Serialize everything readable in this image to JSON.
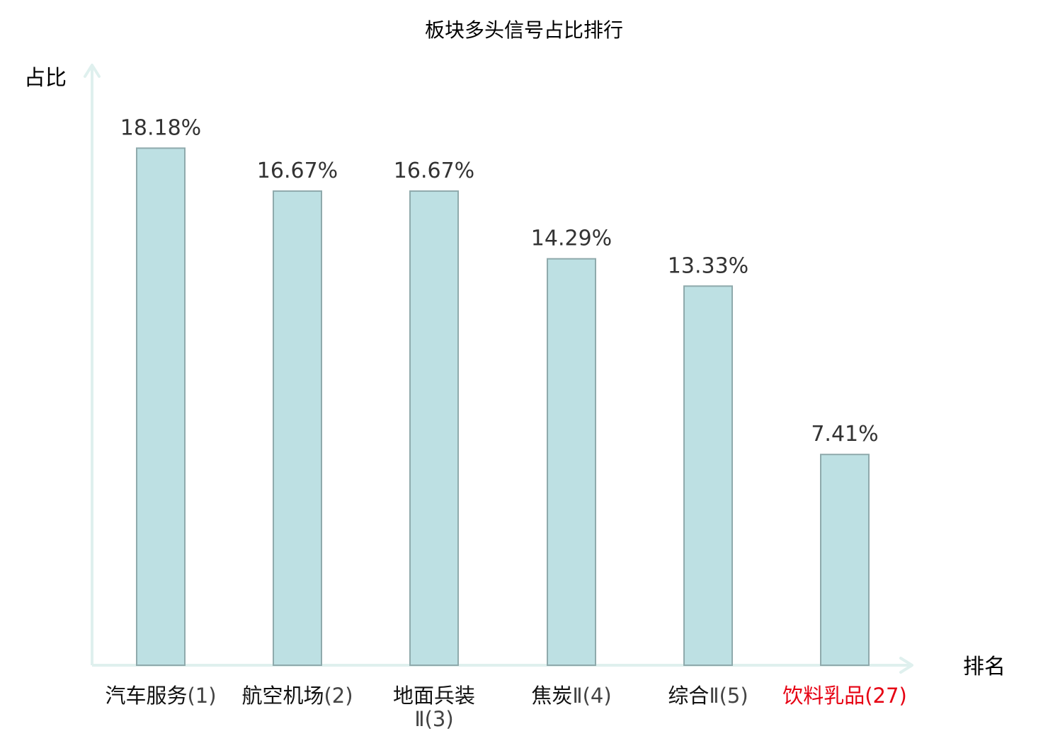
{
  "chart_data": {
    "type": "bar",
    "title": "板块多头信号占比排行",
    "xlabel": "排名",
    "ylabel": "占比",
    "categories": [
      {
        "name": "汽车服务",
        "rank": "(1)"
      },
      {
        "name": "航空机场",
        "rank": "(2)"
      },
      {
        "name": "地面兵装",
        "rank": "Ⅱ(3)"
      },
      {
        "name": "焦炭",
        "rank": "Ⅱ(4)"
      },
      {
        "name": "综合",
        "rank": "Ⅱ(5)"
      },
      {
        "name": "饮料乳品",
        "rank": "(27)"
      }
    ],
    "values": [
      18.18,
      16.67,
      16.67,
      14.29,
      13.33,
      7.41
    ],
    "value_labels": [
      "18.18%",
      "16.67%",
      "16.67%",
      "14.29%",
      "13.33%",
      "7.41%"
    ],
    "highlight_index": 5,
    "ylim": [
      0,
      21.1
    ],
    "grid": false,
    "colors": {
      "bar_fill": "#bde0e3",
      "bar_stroke": "#8faaac",
      "axis": "#dff0ee",
      "highlight_text": "#e60012"
    }
  }
}
